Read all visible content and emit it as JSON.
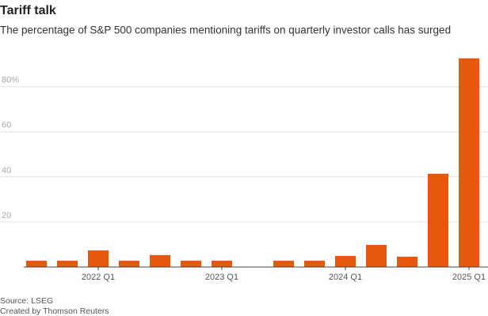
{
  "chart_data": {
    "type": "bar",
    "title": "Tariff talk",
    "subtitle": "The percentage of S&P 500 companies mentioning tariffs on quarterly investor calls has surged",
    "categories": [
      null,
      null,
      "2022 Q1",
      null,
      null,
      null,
      "2023 Q1",
      null,
      null,
      null,
      "2024 Q1",
      null,
      null,
      null,
      "2025 Q1"
    ],
    "values": [
      2.8,
      2.8,
      7.4,
      2.8,
      5.3,
      2.8,
      2.8,
      null,
      2.8,
      2.8,
      4.9,
      9.8,
      4.6,
      41.4,
      92.6
    ],
    "color": "#e5580e",
    "ylim": [
      0,
      95
    ],
    "yticks": [
      20,
      40,
      60,
      {
        "value": 80,
        "label": "80%"
      }
    ],
    "grid": true,
    "source": "Source: LSEG",
    "credit": "Created by Thomson Reuters"
  }
}
